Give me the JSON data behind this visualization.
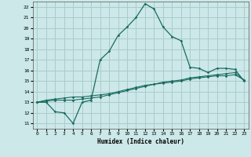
{
  "xlabel": "Humidex (Indice chaleur)",
  "background_color": "#cce8e8",
  "grid_color": "#aacccc",
  "line_color": "#1a6b60",
  "xlim": [
    -0.5,
    23.5
  ],
  "ylim": [
    10.5,
    22.5
  ],
  "xticks": [
    0,
    1,
    2,
    3,
    4,
    5,
    6,
    7,
    8,
    9,
    10,
    11,
    12,
    13,
    14,
    15,
    16,
    17,
    18,
    19,
    20,
    21,
    22,
    23
  ],
  "yticks": [
    11,
    12,
    13,
    14,
    15,
    16,
    17,
    18,
    19,
    20,
    21,
    22
  ],
  "line1_y": [
    13.0,
    13.0,
    12.1,
    12.0,
    11.0,
    13.0,
    13.2,
    17.0,
    17.8,
    19.3,
    20.1,
    21.0,
    22.3,
    21.8,
    20.1,
    19.2,
    18.8,
    16.3,
    16.2,
    15.8,
    16.2,
    16.2,
    16.1,
    15.0
  ],
  "line2_y": [
    13.0,
    13.2,
    13.3,
    13.4,
    13.5,
    13.5,
    13.6,
    13.7,
    13.8,
    14.0,
    14.2,
    14.4,
    14.6,
    14.7,
    14.9,
    15.0,
    15.1,
    15.3,
    15.4,
    15.5,
    15.6,
    15.7,
    15.8,
    15.1
  ],
  "line3_y": [
    13.0,
    13.1,
    13.2,
    13.2,
    13.2,
    13.3,
    13.4,
    13.5,
    13.7,
    13.9,
    14.1,
    14.3,
    14.5,
    14.7,
    14.8,
    14.9,
    15.0,
    15.2,
    15.3,
    15.4,
    15.5,
    15.5,
    15.6,
    15.1
  ]
}
